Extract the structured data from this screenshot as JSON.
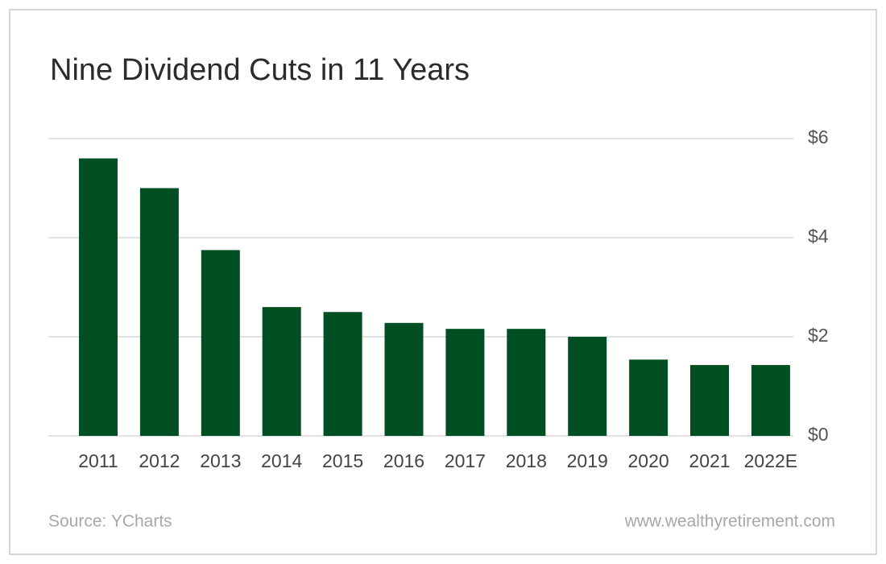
{
  "chart_data": {
    "type": "bar",
    "title": "Nine Dividend Cuts in 11 Years",
    "categories": [
      "2011",
      "2012",
      "2013",
      "2014",
      "2015",
      "2016",
      "2017",
      "2018",
      "2019",
      "2020",
      "2021",
      "2022E"
    ],
    "values": [
      5.6,
      5.0,
      3.75,
      2.6,
      2.5,
      2.28,
      2.16,
      2.16,
      2.0,
      1.54,
      1.43,
      1.43
    ],
    "color": "#004f23",
    "ylim": [
      0,
      6
    ],
    "yticks": [
      {
        "value": 0,
        "label": "$0"
      },
      {
        "value": 2,
        "label": "$2"
      },
      {
        "value": 4,
        "label": "$4"
      },
      {
        "value": 6,
        "label": "$6"
      }
    ],
    "grid": true,
    "source": "Source: YCharts",
    "website": "www.wealthyretirement.com"
  }
}
